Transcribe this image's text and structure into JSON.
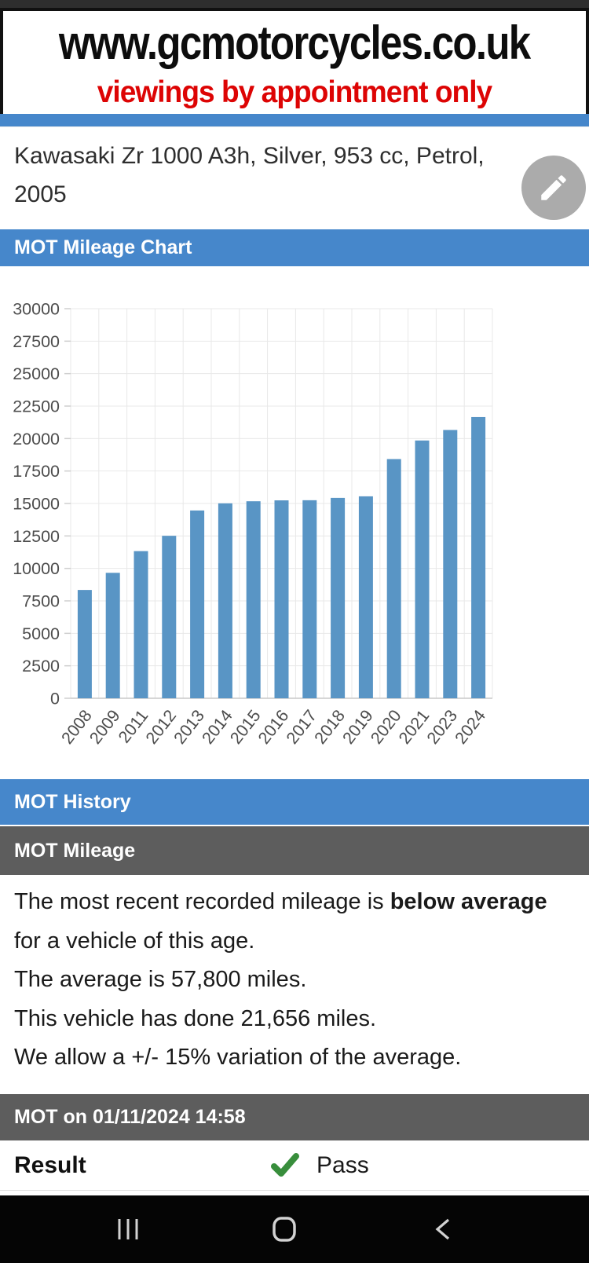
{
  "banner": {
    "url": "www.gcmotorcycles.co.uk",
    "tagline": "viewings by appointment only"
  },
  "vehicle": {
    "title": "Kawasaki Zr 1000 A3h, Silver, 953 cc, Petrol, 2005"
  },
  "sections": {
    "chart_header": "MOT Mileage Chart",
    "history_header": "MOT History",
    "mileage_header": "MOT Mileage",
    "mot_entry_header": "MOT on 01/11/2024 14:58"
  },
  "mileage_summary": {
    "line1_prefix": "The most recent recorded mileage is ",
    "line1_bold": "below average",
    "line1_suffix": " for a vehicle of this age.",
    "line2": "The average is 57,800 miles.",
    "line3": "This vehicle has done 21,656 miles.",
    "line4": "We allow a +/- 15% variation of the average."
  },
  "mot_entry": {
    "result_label": "Result",
    "result_value": "Pass",
    "result_icon": "check-icon"
  },
  "chart_data": {
    "type": "bar",
    "title": "",
    "xlabel": "",
    "ylabel": "",
    "categories": [
      "2008",
      "2009",
      "2011",
      "2012",
      "2013",
      "2014",
      "2015",
      "2016",
      "2017",
      "2018",
      "2019",
      "2020",
      "2021",
      "2023",
      "2024"
    ],
    "values": [
      8340,
      9660,
      11330,
      12510,
      14460,
      15010,
      15170,
      15240,
      15250,
      15430,
      15550,
      18420,
      19850,
      20660,
      21656
    ],
    "ylim": [
      0,
      30000
    ],
    "yticks": [
      0,
      2500,
      5000,
      7500,
      10000,
      12500,
      15000,
      17500,
      20000,
      22500,
      25000,
      27500,
      30000
    ],
    "grid": true,
    "legend": false,
    "bar_color": "#5995c5"
  },
  "colors": {
    "header_blue": "#4687cb",
    "header_gray": "#5d5d5d",
    "banner_red": "#dd0404",
    "bar_blue": "#5995c5",
    "check_green": "#388e3c",
    "fab_gray": "#ababab"
  },
  "icons": {
    "edit": "pencil-icon",
    "pass": "check-icon",
    "nav": [
      "recents-icon",
      "home-icon",
      "back-icon"
    ]
  }
}
